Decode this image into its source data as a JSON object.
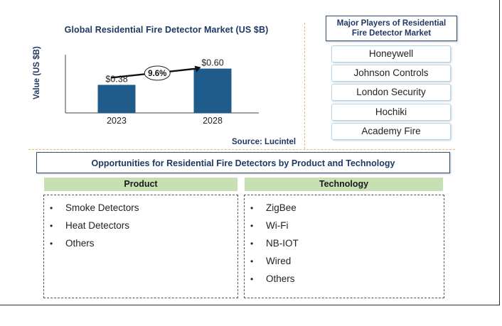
{
  "chart_data": {
    "type": "bar",
    "title": "Global  Residential  Fire Detector  Market (US $B)",
    "ylabel": "Value (US $B)",
    "xlabel": "",
    "categories": [
      "2023",
      "2028"
    ],
    "values": [
      0.38,
      0.6
    ],
    "value_labels": [
      "$0.38",
      "$0.60"
    ],
    "annotation": "9.6%",
    "ylim": [
      0,
      0.75
    ],
    "bar_color": "#1f5c8b",
    "grid": false,
    "source": "Source: Lucintel"
  },
  "players": {
    "title": "Major Players of Residential Fire Detector Market",
    "items": [
      "Honeywell",
      "Johnson Controls",
      "London Security",
      "Hochiki",
      "Academy Fire"
    ]
  },
  "opportunities": {
    "title": "Opportunities for Residential Fire Detectors by Product and Technology",
    "product": {
      "header": "Product",
      "items": [
        "Smoke Detectors",
        "Heat Detectors",
        "Others"
      ]
    },
    "technology": {
      "header": "Technology",
      "items": [
        "ZigBee",
        "Wi-Fi",
        "NB-IOT",
        "Wired",
        "Others"
      ]
    },
    "bullet": "•"
  },
  "colors": {
    "accent": "#1f3864",
    "header_fill": "#c6e0b4",
    "separator": "#e0c060"
  }
}
